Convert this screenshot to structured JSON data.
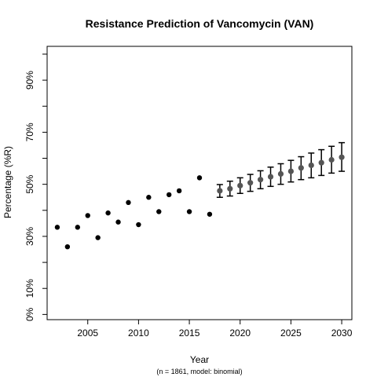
{
  "chart_data": {
    "type": "scatter",
    "title": "Resistance Prediction of Vancomycin (VAN)",
    "xlabel": "Year",
    "ylabel": "Percentage (%R)",
    "subtitle": "(n = 1861, model: binomial)",
    "xlim": [
      2001,
      2031
    ],
    "ylim": [
      -2,
      103
    ],
    "x_ticks": [
      2005,
      2010,
      2015,
      2020,
      2025,
      2030
    ],
    "y_ticks": [
      {
        "value": 0,
        "label": "0%"
      },
      {
        "value": 10,
        "label": "10%"
      },
      {
        "value": 20,
        "label": ""
      },
      {
        "value": 30,
        "label": "30%"
      },
      {
        "value": 40,
        "label": ""
      },
      {
        "value": 50,
        "label": "50%"
      },
      {
        "value": 60,
        "label": ""
      },
      {
        "value": 70,
        "label": "70%"
      },
      {
        "value": 80,
        "label": ""
      },
      {
        "value": 90,
        "label": "90%"
      },
      {
        "value": 100,
        "label": ""
      }
    ],
    "grid": false,
    "series": [
      {
        "role": "observed",
        "color": "#000000",
        "x": [
          2002,
          2003,
          2004,
          2005,
          2006,
          2007,
          2008,
          2009,
          2010,
          2011,
          2012,
          2013,
          2014,
          2015,
          2016,
          2017
        ],
        "y": [
          33.5,
          26.0,
          33.5,
          38.0,
          29.5,
          39.0,
          35.5,
          43.0,
          34.5,
          45.0,
          39.5,
          46.0,
          47.5,
          39.5,
          52.5,
          38.5
        ]
      },
      {
        "role": "predicted",
        "color": "#555555",
        "x": [
          2018,
          2019,
          2020,
          2021,
          2022,
          2023,
          2024,
          2025,
          2026,
          2027,
          2028,
          2029,
          2030
        ],
        "y": [
          47.5,
          48.3,
          49.5,
          50.6,
          51.8,
          52.9,
          54.0,
          55.0,
          56.3,
          57.3,
          58.3,
          59.4,
          60.4
        ],
        "lower": [
          45.0,
          45.5,
          46.5,
          47.3,
          48.3,
          49.2,
          50.0,
          50.9,
          51.8,
          52.5,
          53.4,
          54.3,
          55.0
        ],
        "upper": [
          49.9,
          51.2,
          52.5,
          53.8,
          55.2,
          56.6,
          57.9,
          59.2,
          60.6,
          62.0,
          63.3,
          64.6,
          66.0
        ]
      }
    ]
  }
}
